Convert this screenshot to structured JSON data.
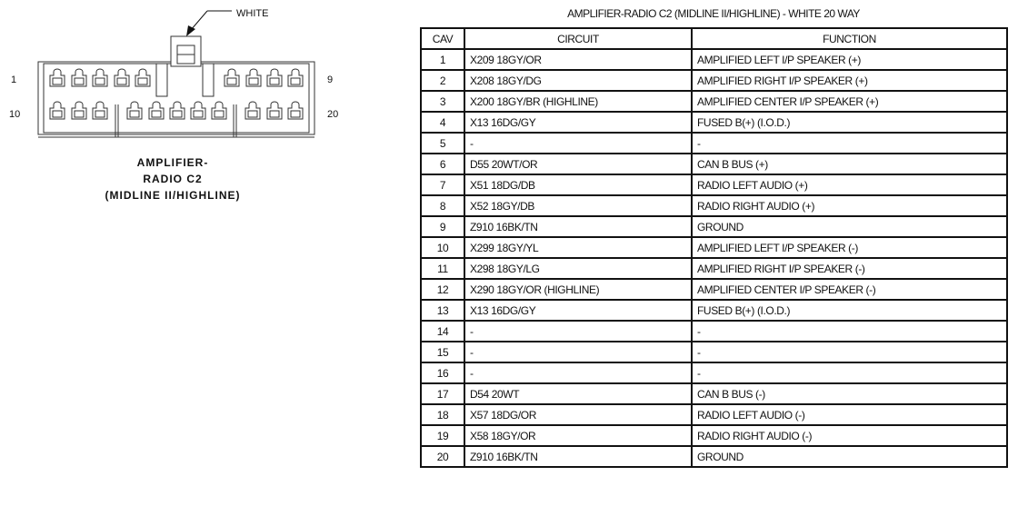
{
  "connector": {
    "color_label": "WHITE",
    "pin_labels": {
      "top_left": "1",
      "top_right": "9",
      "bottom_left": "10",
      "bottom_right": "20"
    },
    "caption": [
      "AMPLIFIER-",
      "RADIO C2",
      "(MIDLINE II/HIGHLINE)"
    ]
  },
  "table": {
    "title": "AMPLIFIER-RADIO C2 (MIDLINE II/HIGHLINE) - WHITE 20 WAY",
    "headers": [
      "CAV",
      "CIRCUIT",
      "FUNCTION"
    ],
    "rows": [
      [
        "1",
        "X209 18GY/OR",
        "AMPLIFIED LEFT I/P SPEAKER (+)"
      ],
      [
        "2",
        "X208 18GY/DG",
        "AMPLIFIED RIGHT I/P SPEAKER (+)"
      ],
      [
        "3",
        "X200 18GY/BR (HIGHLINE)",
        "AMPLIFIED CENTER I/P SPEAKER (+)"
      ],
      [
        "4",
        "X13 16DG/GY",
        "FUSED B(+) (I.O.D.)"
      ],
      [
        "5",
        "-",
        "-"
      ],
      [
        "6",
        "D55 20WT/OR",
        "CAN B BUS (+)"
      ],
      [
        "7",
        "X51 18DG/DB",
        "RADIO LEFT AUDIO (+)"
      ],
      [
        "8",
        "X52 18GY/DB",
        "RADIO RIGHT AUDIO (+)"
      ],
      [
        "9",
        "Z910 16BK/TN",
        "GROUND"
      ],
      [
        "10",
        "X299 18GY/YL",
        "AMPLIFIED LEFT I/P SPEAKER (-)"
      ],
      [
        "11",
        "X298 18GY/LG",
        "AMPLIFIED RIGHT I/P SPEAKER (-)"
      ],
      [
        "12",
        "X290 18GY/OR (HIGHLINE)",
        "AMPLIFIED CENTER I/P SPEAKER (-)"
      ],
      [
        "13",
        "X13 16DG/GY",
        "FUSED B(+) (I.O.D.)"
      ],
      [
        "14",
        "-",
        "-"
      ],
      [
        "15",
        "-",
        "-"
      ],
      [
        "16",
        "-",
        "-"
      ],
      [
        "17",
        "D54 20WT",
        "CAN B BUS (-)"
      ],
      [
        "18",
        "X57 18DG/OR",
        "RADIO LEFT AUDIO (-)"
      ],
      [
        "19",
        "X58 18GY/OR",
        "RADIO RIGHT AUDIO (-)"
      ],
      [
        "20",
        "Z910 16BK/TN",
        "GROUND"
      ]
    ]
  }
}
